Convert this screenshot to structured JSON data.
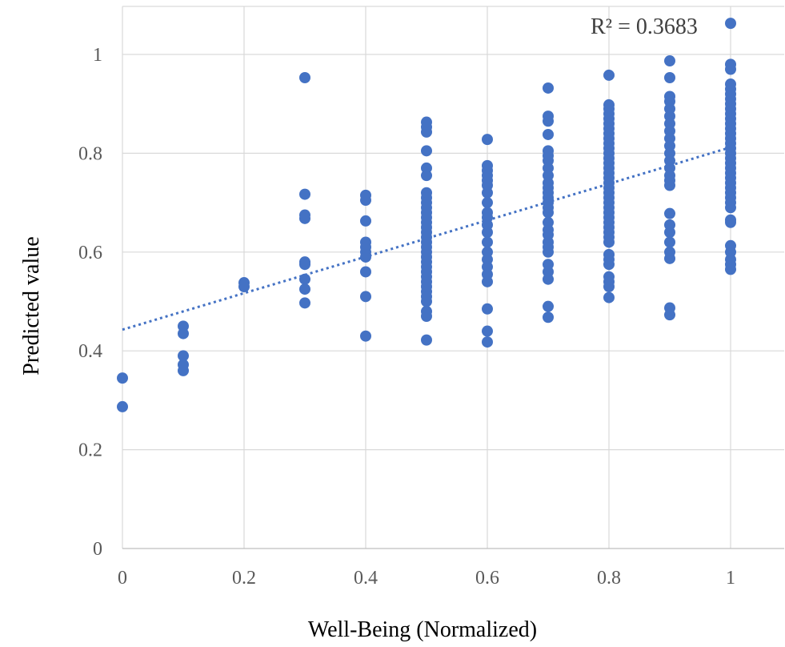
{
  "chart_data": {
    "type": "scatter",
    "title": "",
    "xlabel": "Well-Being (Normalized)",
    "ylabel": "Predicted value",
    "xlim": [
      0,
      1
    ],
    "ylim": [
      0,
      1.0
    ],
    "xticks": [
      "0",
      "0.2",
      "0.4",
      "0.6",
      "0.8",
      "1"
    ],
    "yticks": [
      "0",
      "0.2",
      "0.4",
      "0.6",
      "0.8",
      "1"
    ],
    "grid": true,
    "legend": "none",
    "point_color": "#4472c4",
    "annotation": "R² = 0.3683",
    "trendline": {
      "type": "linear",
      "style": "dotted",
      "intercept": 0.443,
      "slope": 0.369
    },
    "series": [
      {
        "points": [
          [
            0,
            0.345
          ],
          [
            0,
            0.287
          ],
          [
            0.1,
            0.45
          ],
          [
            0.1,
            0.435
          ],
          [
            0.1,
            0.39
          ],
          [
            0.1,
            0.372
          ],
          [
            0.1,
            0.36
          ],
          [
            0.2,
            0.538
          ],
          [
            0.2,
            0.53
          ],
          [
            0.3,
            0.953
          ],
          [
            0.3,
            0.717
          ],
          [
            0.3,
            0.675
          ],
          [
            0.3,
            0.668
          ],
          [
            0.3,
            0.58
          ],
          [
            0.3,
            0.575
          ],
          [
            0.3,
            0.545
          ],
          [
            0.3,
            0.525
          ],
          [
            0.3,
            0.497
          ],
          [
            0.4,
            0.715
          ],
          [
            0.4,
            0.705
          ],
          [
            0.4,
            0.663
          ],
          [
            0.4,
            0.62
          ],
          [
            0.4,
            0.61
          ],
          [
            0.4,
            0.6
          ],
          [
            0.4,
            0.59
          ],
          [
            0.4,
            0.56
          ],
          [
            0.4,
            0.51
          ],
          [
            0.4,
            0.43
          ],
          [
            0.5,
            0.863
          ],
          [
            0.5,
            0.853
          ],
          [
            0.5,
            0.843
          ],
          [
            0.5,
            0.805
          ],
          [
            0.5,
            0.77
          ],
          [
            0.5,
            0.755
          ],
          [
            0.5,
            0.72
          ],
          [
            0.5,
            0.71
          ],
          [
            0.5,
            0.7
          ],
          [
            0.5,
            0.69
          ],
          [
            0.5,
            0.68
          ],
          [
            0.5,
            0.67
          ],
          [
            0.5,
            0.66
          ],
          [
            0.5,
            0.65
          ],
          [
            0.5,
            0.64
          ],
          [
            0.5,
            0.63
          ],
          [
            0.5,
            0.62
          ],
          [
            0.5,
            0.61
          ],
          [
            0.5,
            0.6
          ],
          [
            0.5,
            0.59
          ],
          [
            0.5,
            0.58
          ],
          [
            0.5,
            0.57
          ],
          [
            0.5,
            0.56
          ],
          [
            0.5,
            0.55
          ],
          [
            0.5,
            0.54
          ],
          [
            0.5,
            0.53
          ],
          [
            0.5,
            0.52
          ],
          [
            0.5,
            0.51
          ],
          [
            0.5,
            0.5
          ],
          [
            0.5,
            0.48
          ],
          [
            0.5,
            0.47
          ],
          [
            0.5,
            0.422
          ],
          [
            0.6,
            0.828
          ],
          [
            0.6,
            0.775
          ],
          [
            0.6,
            0.765
          ],
          [
            0.6,
            0.755
          ],
          [
            0.6,
            0.745
          ],
          [
            0.6,
            0.735
          ],
          [
            0.6,
            0.72
          ],
          [
            0.6,
            0.7
          ],
          [
            0.6,
            0.68
          ],
          [
            0.6,
            0.67
          ],
          [
            0.6,
            0.655
          ],
          [
            0.6,
            0.64
          ],
          [
            0.6,
            0.62
          ],
          [
            0.6,
            0.6
          ],
          [
            0.6,
            0.585
          ],
          [
            0.6,
            0.57
          ],
          [
            0.6,
            0.555
          ],
          [
            0.6,
            0.54
          ],
          [
            0.6,
            0.485
          ],
          [
            0.6,
            0.44
          ],
          [
            0.6,
            0.418
          ],
          [
            0.7,
            0.932
          ],
          [
            0.7,
            0.875
          ],
          [
            0.7,
            0.865
          ],
          [
            0.7,
            0.838
          ],
          [
            0.7,
            0.805
          ],
          [
            0.7,
            0.795
          ],
          [
            0.7,
            0.785
          ],
          [
            0.7,
            0.77
          ],
          [
            0.7,
            0.755
          ],
          [
            0.7,
            0.74
          ],
          [
            0.7,
            0.73
          ],
          [
            0.7,
            0.72
          ],
          [
            0.7,
            0.71
          ],
          [
            0.7,
            0.7
          ],
          [
            0.7,
            0.69
          ],
          [
            0.7,
            0.68
          ],
          [
            0.7,
            0.66
          ],
          [
            0.7,
            0.645
          ],
          [
            0.7,
            0.635
          ],
          [
            0.7,
            0.62
          ],
          [
            0.7,
            0.61
          ],
          [
            0.7,
            0.6
          ],
          [
            0.7,
            0.575
          ],
          [
            0.7,
            0.56
          ],
          [
            0.7,
            0.545
          ],
          [
            0.7,
            0.49
          ],
          [
            0.7,
            0.468
          ],
          [
            0.8,
            0.958
          ],
          [
            0.8,
            0.898
          ],
          [
            0.8,
            0.89
          ],
          [
            0.8,
            0.88
          ],
          [
            0.8,
            0.87
          ],
          [
            0.8,
            0.86
          ],
          [
            0.8,
            0.85
          ],
          [
            0.8,
            0.84
          ],
          [
            0.8,
            0.83
          ],
          [
            0.8,
            0.82
          ],
          [
            0.8,
            0.81
          ],
          [
            0.8,
            0.8
          ],
          [
            0.8,
            0.79
          ],
          [
            0.8,
            0.78
          ],
          [
            0.8,
            0.77
          ],
          [
            0.8,
            0.76
          ],
          [
            0.8,
            0.75
          ],
          [
            0.8,
            0.74
          ],
          [
            0.8,
            0.73
          ],
          [
            0.8,
            0.72
          ],
          [
            0.8,
            0.71
          ],
          [
            0.8,
            0.7
          ],
          [
            0.8,
            0.69
          ],
          [
            0.8,
            0.68
          ],
          [
            0.8,
            0.67
          ],
          [
            0.8,
            0.66
          ],
          [
            0.8,
            0.65
          ],
          [
            0.8,
            0.64
          ],
          [
            0.8,
            0.63
          ],
          [
            0.8,
            0.62
          ],
          [
            0.8,
            0.595
          ],
          [
            0.8,
            0.585
          ],
          [
            0.8,
            0.575
          ],
          [
            0.8,
            0.55
          ],
          [
            0.8,
            0.54
          ],
          [
            0.8,
            0.53
          ],
          [
            0.8,
            0.508
          ],
          [
            0.9,
            0.987
          ],
          [
            0.9,
            0.953
          ],
          [
            0.9,
            0.915
          ],
          [
            0.9,
            0.905
          ],
          [
            0.9,
            0.89
          ],
          [
            0.9,
            0.875
          ],
          [
            0.9,
            0.86
          ],
          [
            0.9,
            0.845
          ],
          [
            0.9,
            0.83
          ],
          [
            0.9,
            0.815
          ],
          [
            0.9,
            0.8
          ],
          [
            0.9,
            0.785
          ],
          [
            0.9,
            0.77
          ],
          [
            0.9,
            0.755
          ],
          [
            0.9,
            0.745
          ],
          [
            0.9,
            0.735
          ],
          [
            0.9,
            0.678
          ],
          [
            0.9,
            0.655
          ],
          [
            0.9,
            0.64
          ],
          [
            0.9,
            0.62
          ],
          [
            0.9,
            0.6
          ],
          [
            0.9,
            0.587
          ],
          [
            0.9,
            0.487
          ],
          [
            0.9,
            0.473
          ],
          [
            1,
            1.063
          ],
          [
            1,
            0.98
          ],
          [
            1,
            0.97
          ],
          [
            1,
            0.94
          ],
          [
            1,
            0.93
          ],
          [
            1,
            0.92
          ],
          [
            1,
            0.91
          ],
          [
            1,
            0.9
          ],
          [
            1,
            0.89
          ],
          [
            1,
            0.88
          ],
          [
            1,
            0.87
          ],
          [
            1,
            0.86
          ],
          [
            1,
            0.85
          ],
          [
            1,
            0.84
          ],
          [
            1,
            0.83
          ],
          [
            1,
            0.82
          ],
          [
            1,
            0.81
          ],
          [
            1,
            0.8
          ],
          [
            1,
            0.79
          ],
          [
            1,
            0.78
          ],
          [
            1,
            0.77
          ],
          [
            1,
            0.76
          ],
          [
            1,
            0.75
          ],
          [
            1,
            0.74
          ],
          [
            1,
            0.73
          ],
          [
            1,
            0.72
          ],
          [
            1,
            0.71
          ],
          [
            1,
            0.7
          ],
          [
            1,
            0.69
          ],
          [
            1,
            0.665
          ],
          [
            1,
            0.66
          ],
          [
            1,
            0.613
          ],
          [
            1,
            0.6
          ],
          [
            1,
            0.585
          ],
          [
            1,
            0.575
          ],
          [
            1,
            0.565
          ]
        ]
      }
    ]
  }
}
